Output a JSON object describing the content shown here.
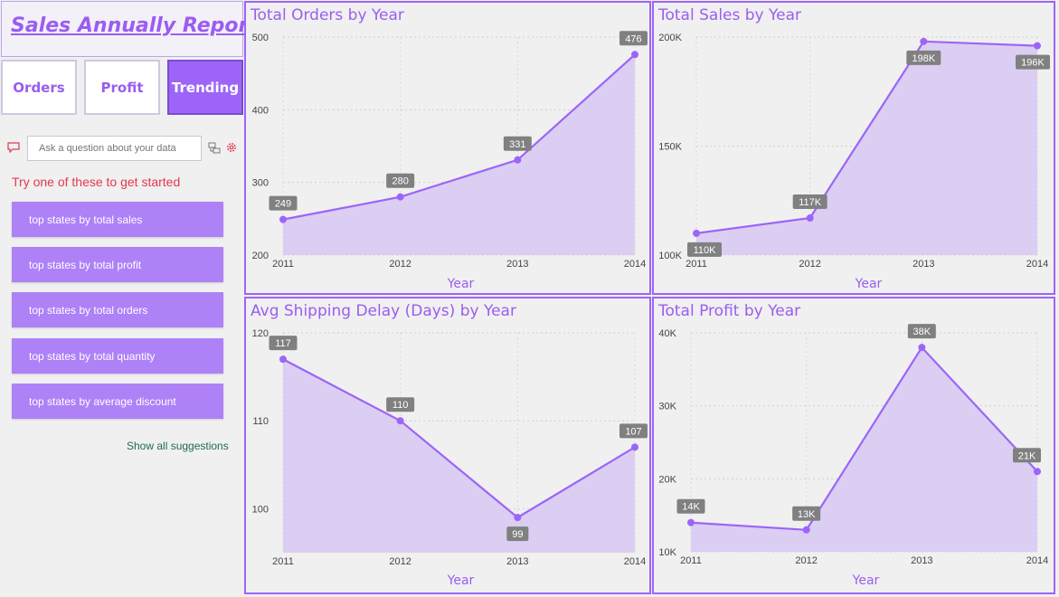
{
  "report_title": "Sales Annually Report",
  "nav": [
    {
      "label": "Orders"
    },
    {
      "label": "Profit"
    },
    {
      "label": "Trending"
    }
  ],
  "qa": {
    "placeholder": "Ask a question about your data",
    "try_text": "Try one of these to get started",
    "suggestions": [
      "top states by total sales",
      "top states by total profit",
      "top states by total orders",
      "top states by total quantity",
      "top states by average discount"
    ],
    "show_all": "Show all suggestions"
  },
  "colors": {
    "accent": "#9c65f7",
    "area": "#d9cbf1",
    "label_bg": "#808080",
    "title": "#9a5df0"
  },
  "chart_data": [
    {
      "type": "area",
      "title": "Total Orders by Year",
      "xlabel": "Year",
      "ylabel": "",
      "x": [
        "2011",
        "2012",
        "2013",
        "2014"
      ],
      "values": [
        249,
        280,
        331,
        476
      ],
      "data_labels": [
        "249",
        "280",
        "331",
        "476"
      ],
      "ylim": [
        200,
        500
      ],
      "yticks": [
        200,
        300,
        400,
        500
      ],
      "ytick_labels": [
        "200",
        "300",
        "400",
        "500"
      ],
      "grid": true
    },
    {
      "type": "area",
      "title": "Total Sales by Year",
      "xlabel": "Year",
      "ylabel": "",
      "x": [
        "2011",
        "2012",
        "2013",
        "2014"
      ],
      "values": [
        110000,
        117000,
        198000,
        196000
      ],
      "data_labels": [
        "110K",
        "117K",
        "198K",
        "196K"
      ],
      "ylim": [
        100000,
        200000
      ],
      "yticks": [
        100000,
        150000,
        200000
      ],
      "ytick_labels": [
        "100K",
        "150K",
        "200K"
      ],
      "grid": true
    },
    {
      "type": "area",
      "title": "Avg Shipping Delay (Days) by Year",
      "xlabel": "Year",
      "ylabel": "",
      "x": [
        "2011",
        "2012",
        "2013",
        "2014"
      ],
      "values": [
        117,
        110,
        99,
        107
      ],
      "data_labels": [
        "117",
        "110",
        "99",
        "107"
      ],
      "ylim": [
        95,
        120
      ],
      "yticks": [
        100,
        110,
        120
      ],
      "ytick_labels": [
        "100",
        "110",
        "120"
      ],
      "grid": true
    },
    {
      "type": "area",
      "title": "Total Profit by Year",
      "xlabel": "Year",
      "ylabel": "",
      "x": [
        "2011",
        "2012",
        "2013",
        "2014"
      ],
      "values": [
        14000,
        13000,
        38000,
        21000
      ],
      "data_labels": [
        "14K",
        "13K",
        "38K",
        "21K"
      ],
      "ylim": [
        10000,
        40000
      ],
      "yticks": [
        10000,
        20000,
        30000,
        40000
      ],
      "ytick_labels": [
        "10K",
        "20K",
        "30K",
        "40K"
      ],
      "grid": true
    }
  ]
}
